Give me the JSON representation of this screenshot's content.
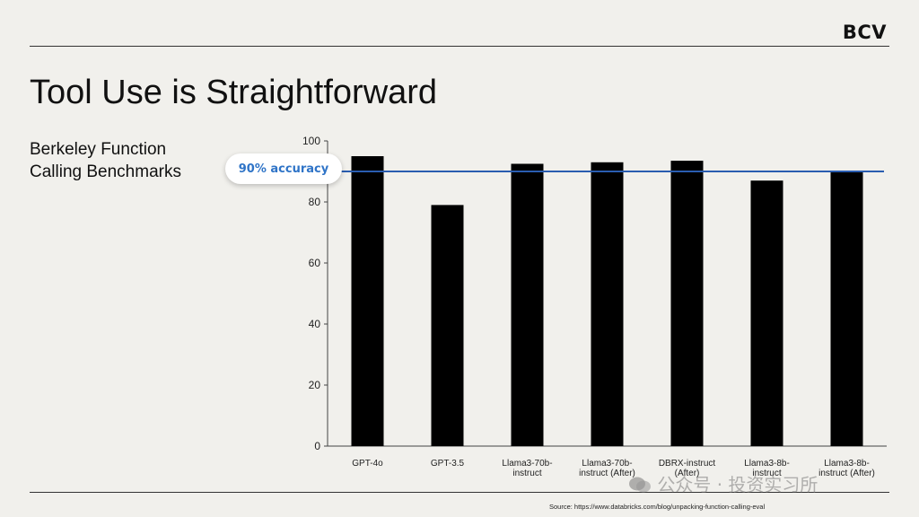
{
  "header": {
    "logo": "BCV"
  },
  "slide": {
    "title": "Tool Use is Straightforward",
    "subtitle": "Berkeley Function Calling Benchmarks"
  },
  "reference": {
    "label": "90% accuracy",
    "value": 90
  },
  "footer": {
    "source": "Source: https://www.databricks.com/blog/unpacking-function-calling-eval",
    "watermark": "公众号 · 投资实习所"
  },
  "colors": {
    "bar": "#000000",
    "reference_line": "#2a5db0",
    "reference_text": "#2f74c7",
    "background": "#f1f0ec"
  },
  "chart_data": {
    "type": "bar",
    "title": "Berkeley Function Calling Benchmarks",
    "xlabel": "",
    "ylabel": "",
    "ylim": [
      0,
      100
    ],
    "yticks": [
      0,
      20,
      40,
      60,
      80,
      100
    ],
    "categories": [
      [
        "GPT-4o"
      ],
      [
        "GPT-3.5"
      ],
      [
        "Llama3-70b-",
        "instruct"
      ],
      [
        "Llama3-70b-",
        "instruct (After)"
      ],
      [
        "DBRX-instruct",
        "(After)"
      ],
      [
        "Llama3-8b-",
        "instruct"
      ],
      [
        "Llama3-8b-",
        "instruct (After)"
      ]
    ],
    "values": [
      95,
      79,
      92.5,
      93,
      93.5,
      87,
      90
    ],
    "reference_line": {
      "value": 90,
      "label": "90% accuracy"
    }
  }
}
